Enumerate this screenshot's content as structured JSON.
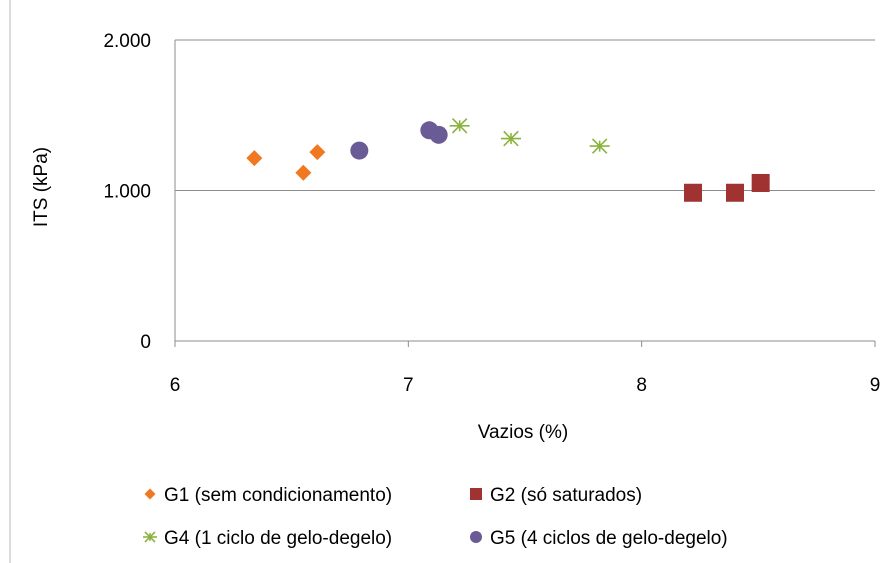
{
  "chart_data": {
    "type": "scatter",
    "title": "",
    "xlabel": "Vazios (%)",
    "ylabel": "ITS (kPa)",
    "xlim": [
      6,
      9
    ],
    "ylim": [
      0,
      2000
    ],
    "x_ticks": [
      {
        "value": 6,
        "label": "6"
      },
      {
        "value": 7,
        "label": "7"
      },
      {
        "value": 8,
        "label": "8"
      },
      {
        "value": 9,
        "label": "9"
      }
    ],
    "y_ticks": [
      {
        "value": 0,
        "label": "0"
      },
      {
        "value": 1000,
        "label": "1.000"
      },
      {
        "value": 2000,
        "label": "2.000"
      }
    ],
    "grid": "horizontal",
    "legend_position": "bottom",
    "series": [
      {
        "name": "G1 (sem condicionamento)",
        "marker": "diamond",
        "color": "#F07820",
        "points": [
          [
            6.34,
            1215
          ],
          [
            6.55,
            1118
          ],
          [
            6.61,
            1255
          ]
        ]
      },
      {
        "name": "G2 (só saturados)",
        "marker": "square",
        "color": "#A03232",
        "points": [
          [
            8.22,
            985
          ],
          [
            8.4,
            985
          ],
          [
            8.51,
            1050
          ]
        ]
      },
      {
        "name": "G4 (1 ciclo de gelo-degelo)",
        "marker": "star",
        "color": "#8AB23C",
        "points": [
          [
            7.22,
            1430
          ],
          [
            7.44,
            1345
          ],
          [
            7.82,
            1295
          ]
        ]
      },
      {
        "name": "G5 (4 ciclos de gelo-degelo)",
        "marker": "circle",
        "color": "#6A5A96",
        "points": [
          [
            6.79,
            1265
          ],
          [
            7.09,
            1400
          ],
          [
            7.13,
            1370
          ]
        ]
      }
    ]
  }
}
